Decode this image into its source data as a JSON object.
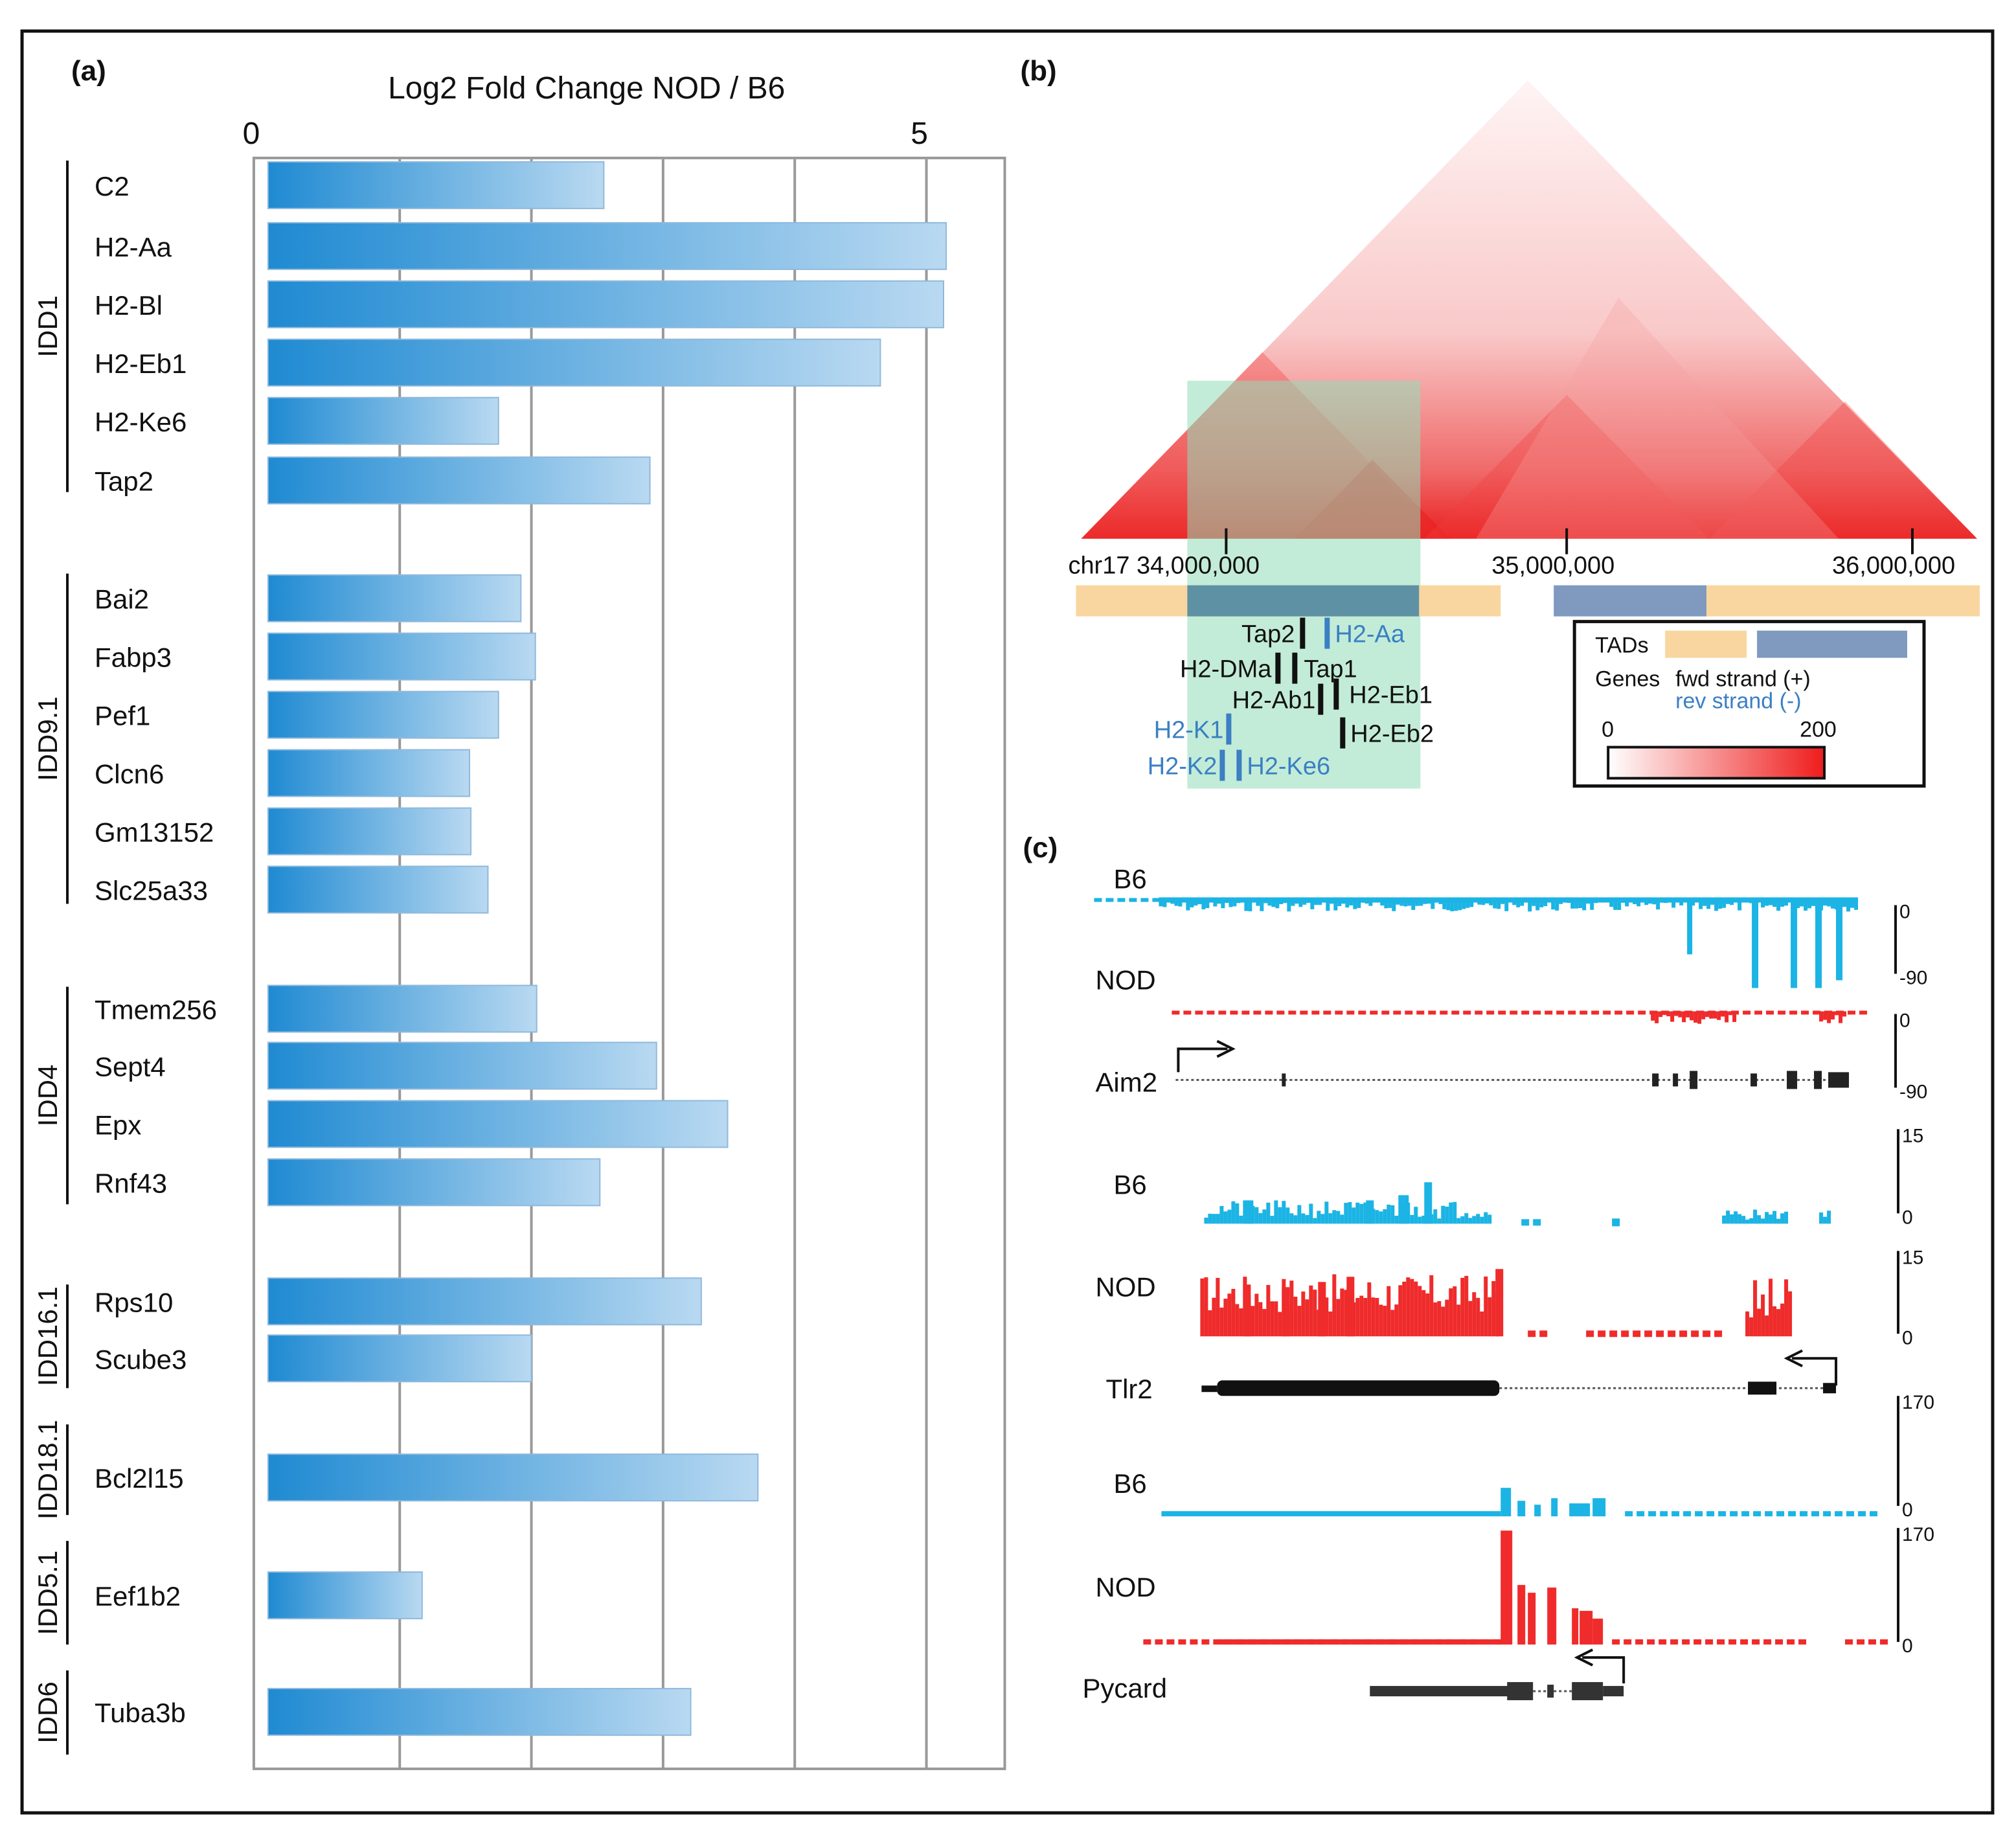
{
  "panels": {
    "a": "(a)",
    "b": "(b)",
    "c": "(c)"
  },
  "colors": {
    "bar_dark": "#1f8ad2",
    "bar_light": "#b9d9f1",
    "b6_track": "#1bb4e4",
    "nod_track": "#ef2b2b",
    "tad_orange": "#f9d6a0",
    "tad_blue": "#7f99bf",
    "green_highlight": "#8fdcb6",
    "minus_strand": "#3b7fc4"
  },
  "chart_data": [
    {
      "type": "bar",
      "orientation": "horizontal",
      "title": "Log2 Fold Change NOD / B6",
      "xlim": [
        0,
        5.6
      ],
      "xticks": [
        "0",
        "5"
      ],
      "grid": true,
      "categories": [
        "C2",
        "H2-Aa",
        "H2-Bl",
        "H2-Eb1",
        "H2-Ke6",
        "Tap2",
        "Bai2",
        "Fabp3",
        "Pef1",
        "Clcn6",
        "Gm13152",
        "Slc25a33",
        "Tmem256",
        "Sept4",
        "Epx",
        "Rnf43",
        "Rps10",
        "Scube3",
        "Bcl2l15",
        "Eef1b2",
        "Tuba3b"
      ],
      "values": [
        2.55,
        5.15,
        5.13,
        4.65,
        1.75,
        2.9,
        1.92,
        2.03,
        1.75,
        1.53,
        1.54,
        1.67,
        2.04,
        2.95,
        3.49,
        2.52,
        3.29,
        2.0,
        3.72,
        1.17,
        3.21
      ],
      "groups": [
        {
          "name": "IDD1",
          "members": [
            "C2",
            "H2-Aa",
            "H2-Bl",
            "H2-Eb1",
            "H2-Ke6",
            "Tap2"
          ]
        },
        {
          "name": "IDD9.1",
          "members": [
            "Bai2",
            "Fabp3",
            "Pef1",
            "Clcn6",
            "Gm13152",
            "Slc25a33"
          ]
        },
        {
          "name": "IDD4",
          "members": [
            "Tmem256",
            "Sept4",
            "Epx",
            "Rnf43"
          ]
        },
        {
          "name": "IDD16.1",
          "members": [
            "Rps10",
            "Scube3"
          ]
        },
        {
          "name": "IDD18.1",
          "members": [
            "Bcl2l15"
          ]
        },
        {
          "name": "IDD5.1",
          "members": [
            "Eef1b2"
          ]
        },
        {
          "name": "IDD6",
          "members": [
            "Tuba3b"
          ]
        }
      ]
    },
    {
      "type": "heatmap",
      "description_text": "chr17 Hi-C contact triangle",
      "axis_labels": [
        "chr17 34,000,000",
        "35,000,000",
        "36,000,000"
      ],
      "scale_range": [
        "0",
        "200"
      ],
      "legend": {
        "tads": "TADs",
        "genes": "Genes",
        "fwd": "fwd strand (+)",
        "rev": "rev strand (-)"
      },
      "genes": [
        {
          "name": "Tap2",
          "strand": "+"
        },
        {
          "name": "H2-Aa",
          "strand": "-"
        },
        {
          "name": "H2-DMa",
          "strand": "+"
        },
        {
          "name": "Tap1",
          "strand": "+"
        },
        {
          "name": "H2-Ab1",
          "strand": "+"
        },
        {
          "name": "H2-Eb1",
          "strand": "+"
        },
        {
          "name": "H2-K1",
          "strand": "-"
        },
        {
          "name": "H2-Eb2",
          "strand": "+"
        },
        {
          "name": "H2-K2",
          "strand": "-"
        },
        {
          "name": "H2-Ke6",
          "strand": "-"
        }
      ]
    },
    {
      "type": "area",
      "tracks": [
        {
          "gene": "Aim2",
          "b6_label": "B6",
          "nod_label": "NOD",
          "scale_top": "0",
          "scale_bottom": "-90"
        },
        {
          "gene": "Tlr2",
          "b6_label": "B6",
          "nod_label": "NOD",
          "scale_top": "15",
          "scale_bottom": "0"
        },
        {
          "gene": "Pycard",
          "b6_label": "B6",
          "nod_label": "NOD",
          "scale_top": "170",
          "scale_bottom": "0"
        }
      ]
    }
  ]
}
